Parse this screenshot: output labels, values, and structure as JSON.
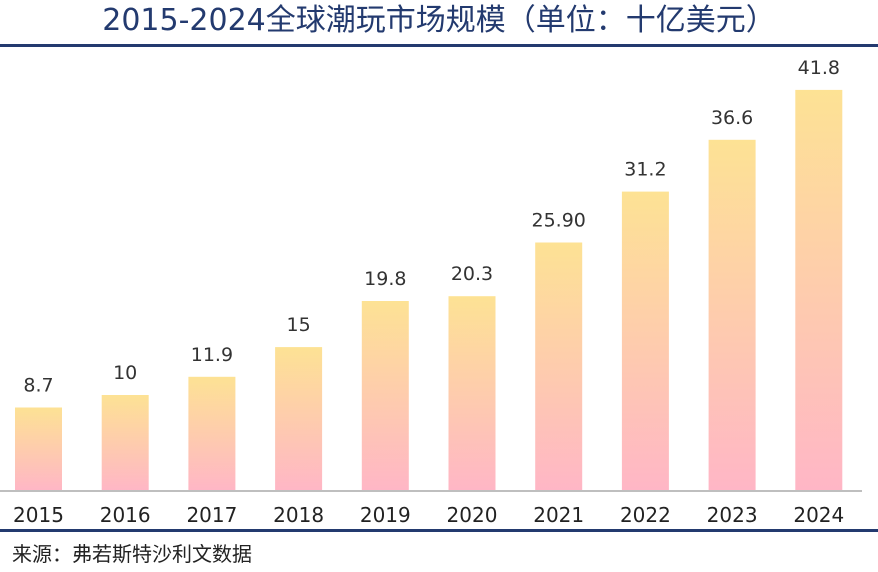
{
  "chart_data": {
    "type": "bar",
    "title": "2015-2024全球潮玩市场规模（单位：十亿美元）",
    "categories": [
      "2015",
      "2016",
      "2017",
      "2018",
      "2019",
      "2020",
      "2021",
      "2022",
      "2023",
      "2024"
    ],
    "values": [
      8.7,
      10,
      11.9,
      15,
      19.8,
      20.3,
      25.9,
      31.2,
      36.6,
      41.8
    ],
    "value_labels": [
      "8.7",
      "10",
      "11.9",
      "15",
      "19.8",
      "20.3",
      "25.90",
      "31.2",
      "36.6",
      "41.8"
    ],
    "xlabel": "",
    "ylabel": "",
    "ylim": [
      0,
      42
    ],
    "grid": false,
    "bar_gradient": {
      "top": "#fde294",
      "bottom": "#ffb6c6"
    },
    "axis_color": "#bfbfbf"
  },
  "title": "2015-2024全球潮玩市场规模（单位：十亿美元）",
  "source": "来源：弗若斯特沙利文数据",
  "colors": {
    "accent": "#233a6f"
  }
}
